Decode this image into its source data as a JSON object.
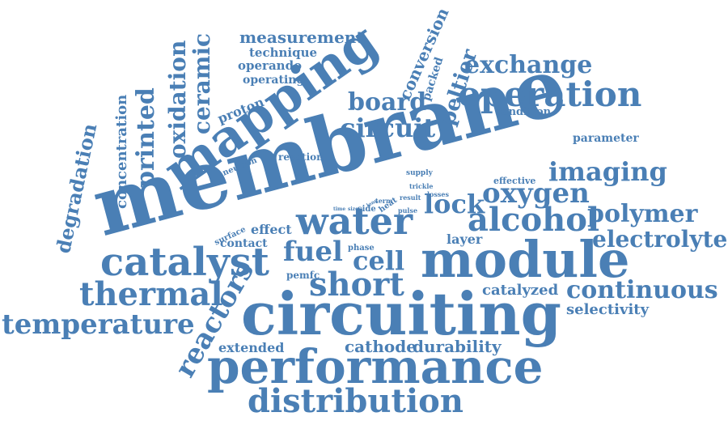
{
  "theme": {
    "word_color": "#4a7fb5",
    "background": "#ffffff"
  },
  "words": {
    "membrane": "membrane",
    "circuiting": "circuiting",
    "performance": "performance",
    "module": "module",
    "mapping": "mapping",
    "catalyst": "catalyst",
    "water": "water",
    "distribution": "distribution",
    "operation": "operation",
    "short": "short",
    "alcohol": "alcohol",
    "thermal": "thermal",
    "temperature": "temperature",
    "imaging": "imaging",
    "oxygen": "oxygen",
    "reactors": "reactors",
    "circuit": "circuit",
    "polymer": "polymer",
    "electrolyte": "electrolyte",
    "continuous": "continuous",
    "exchange": "exchange",
    "board": "board",
    "fuel": "fuel",
    "cell": "cell",
    "lock": "lock",
    "printed": "printed",
    "oxidation": "oxidation",
    "ceramic": "ceramic",
    "degradation": "degradation",
    "concentration": "concentration",
    "peltier": "peltier",
    "conversion": "conversion",
    "measurement": "measurement",
    "technique": "technique",
    "operando": "operando",
    "operating": "operating",
    "proton": "proton",
    "packed": "packed",
    "condition": "condition",
    "parameter": "parameter",
    "neutron": "neutron",
    "reaction": "reaction",
    "supply": "supply",
    "effective": "effective",
    "trickle": "trickle",
    "term": "term",
    "result": "result",
    "losses": "losses",
    "time": "time",
    "size": "size",
    "side": "side",
    "long": "long",
    "heat": "heat",
    "pulse": "pulse",
    "surface": "surface",
    "effect": "effect",
    "contact": "contact",
    "phase": "phase",
    "pemfc": "pemfc",
    "layer": "layer",
    "catalyzed": "catalyzed",
    "selectivity": "selectivity",
    "extended": "extended",
    "cathode": "cathode",
    "durability": "durability"
  }
}
